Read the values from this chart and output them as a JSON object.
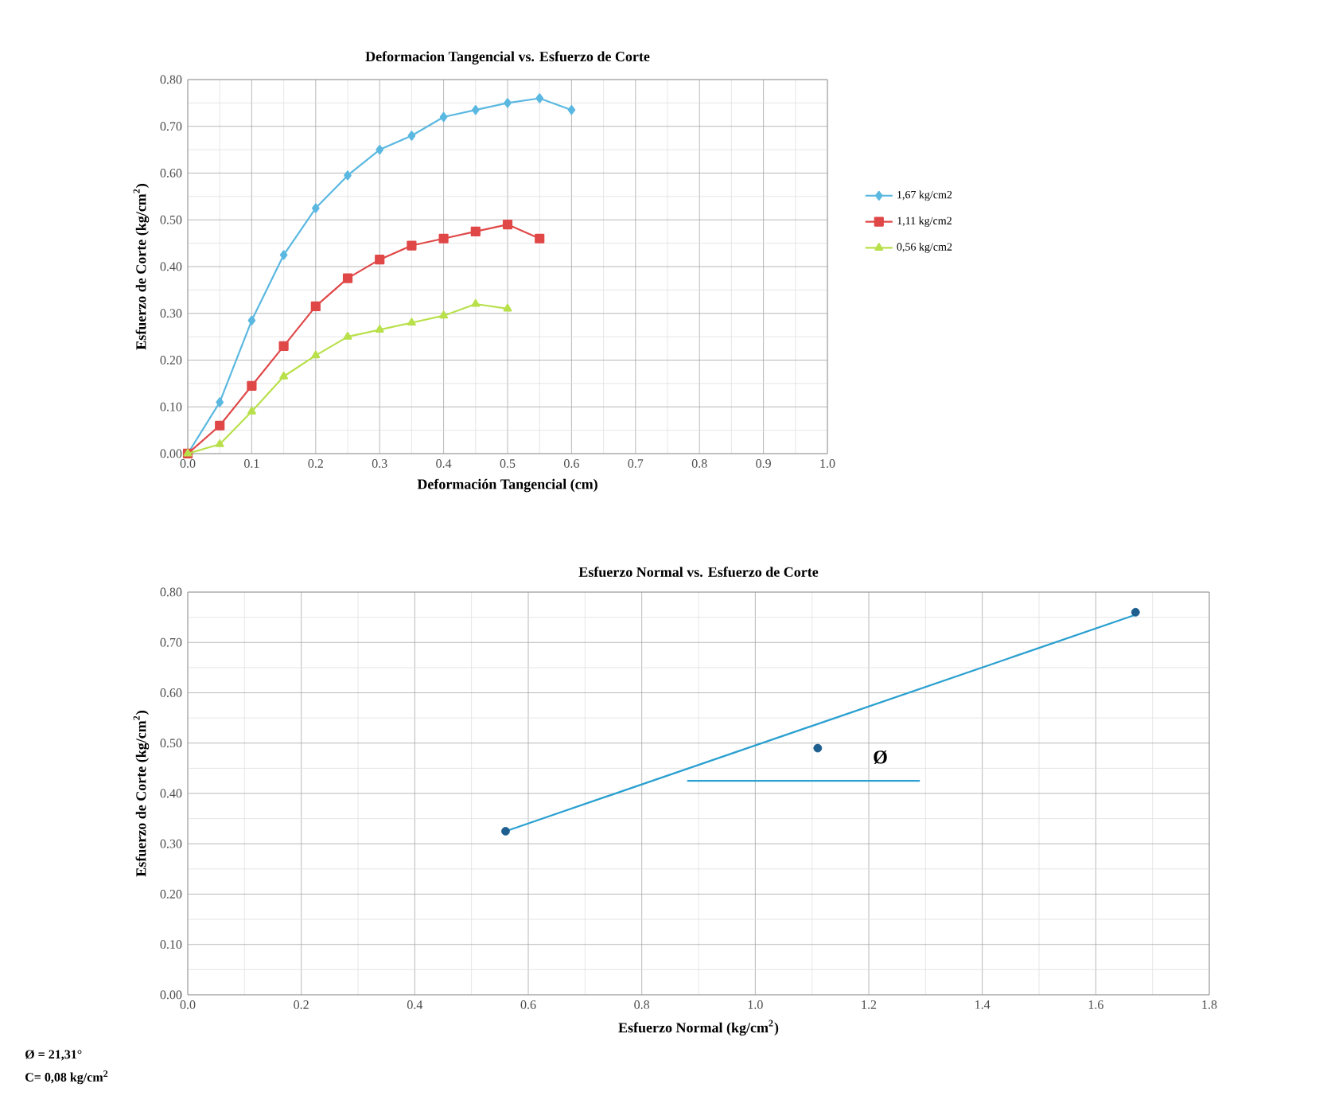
{
  "chart_data": [
    {
      "type": "line",
      "title": "Deformacion Tangencial vs. Esfuerzo de Corte",
      "xlabel": "Deformación Tangencial (cm)",
      "ylabel": "Esfuerzo de Corte (kg/cm$^{2}$)",
      "xlim": [
        0,
        1.0
      ],
      "ylim": [
        0,
        0.8
      ],
      "xticks": [
        {
          "value": 0,
          "label": "0.0"
        },
        {
          "value": 0.1,
          "label": "0.1"
        },
        {
          "value": 0.2,
          "label": "0.2"
        },
        {
          "value": 0.3,
          "label": "0.3"
        },
        {
          "value": 0.4,
          "label": "0.4"
        },
        {
          "value": 0.5,
          "label": "0.5"
        },
        {
          "value": 0.6,
          "label": "0.6"
        },
        {
          "value": 0.7,
          "label": "0.7"
        },
        {
          "value": 0.8,
          "label": "0.8"
        },
        {
          "value": 0.9,
          "label": "0.9"
        },
        {
          "value": 1.0,
          "label": "1.0"
        }
      ],
      "yticks": [
        {
          "value": 0,
          "label": "0.00"
        },
        {
          "value": 0.1,
          "label": "0.10"
        },
        {
          "value": 0.2,
          "label": "0.20"
        },
        {
          "value": 0.3,
          "label": "0.30"
        },
        {
          "value": 0.4,
          "label": "0.40"
        },
        {
          "value": 0.5,
          "label": "0.50"
        },
        {
          "value": 0.6,
          "label": "0.60"
        },
        {
          "value": 0.7,
          "label": "0.70"
        },
        {
          "value": 0.8,
          "label": "0.80"
        }
      ],
      "grid": true,
      "legend": "right",
      "series": [
        {
          "name": "1,67 kg/cm2",
          "color": "#5bb8e0",
          "marker": "diamond",
          "x": [
            0,
            0.05,
            0.1,
            0.15,
            0.2,
            0.25,
            0.3,
            0.35,
            0.4,
            0.45,
            0.5,
            0.55,
            0.6
          ],
          "values": [
            0,
            0.11,
            0.285,
            0.425,
            0.525,
            0.595,
            0.65,
            0.68,
            0.72,
            0.735,
            0.75,
            0.76,
            0.735
          ]
        },
        {
          "name": "1,11 kg/cm2",
          "color": "#e04848",
          "marker": "square",
          "x": [
            0,
            0.05,
            0.1,
            0.15,
            0.2,
            0.25,
            0.3,
            0.35,
            0.4,
            0.45,
            0.5,
            0.55
          ],
          "values": [
            0,
            0.06,
            0.145,
            0.23,
            0.315,
            0.375,
            0.415,
            0.445,
            0.46,
            0.475,
            0.49,
            0.46
          ]
        },
        {
          "name": "0,56 kg/cm2",
          "color": "#b8e04a",
          "marker": "triangle",
          "x": [
            0,
            0.05,
            0.1,
            0.15,
            0.2,
            0.25,
            0.3,
            0.35,
            0.4,
            0.45,
            0.5
          ],
          "values": [
            0,
            0.02,
            0.09,
            0.165,
            0.21,
            0.25,
            0.265,
            0.28,
            0.295,
            0.32,
            0.31
          ]
        }
      ]
    },
    {
      "type": "scatter",
      "title": "Esfuerzo Normal vs. Esfuerzo de Corte",
      "xlabel": "Esfuerzo Normal (kg/cm$^{2}$)",
      "ylabel": "Esfuerzo de Corte (kg/cm$^{2}$)",
      "xlim": [
        0,
        1.8
      ],
      "ylim": [
        0,
        0.8
      ],
      "xticks": [
        {
          "value": 0,
          "label": "0.0"
        },
        {
          "value": 0.2,
          "label": "0.2"
        },
        {
          "value": 0.4,
          "label": "0.4"
        },
        {
          "value": 0.6,
          "label": "0.6"
        },
        {
          "value": 0.8,
          "label": "0.8"
        },
        {
          "value": 1.0,
          "label": "1.0"
        },
        {
          "value": 1.2,
          "label": "1.2"
        },
        {
          "value": 1.4,
          "label": "1.4"
        },
        {
          "value": 1.6,
          "label": "1.6"
        },
        {
          "value": 1.8,
          "label": "1.8"
        }
      ],
      "yticks": [
        {
          "value": 0,
          "label": "0.00"
        },
        {
          "value": 0.1,
          "label": "0.10"
        },
        {
          "value": 0.2,
          "label": "0.20"
        },
        {
          "value": 0.3,
          "label": "0.30"
        },
        {
          "value": 0.4,
          "label": "0.40"
        },
        {
          "value": 0.5,
          "label": "0.50"
        },
        {
          "value": 0.6,
          "label": "0.60"
        },
        {
          "value": 0.7,
          "label": "0.70"
        },
        {
          "value": 0.8,
          "label": "0.80"
        }
      ],
      "grid": true,
      "series": [
        {
          "type": "line",
          "color": "#2aa0d0",
          "marker": "none",
          "x": [
            0.56,
            1.67
          ],
          "values": [
            0.325,
            0.755
          ]
        },
        {
          "type": "line",
          "color": "#2aa0d0",
          "marker": "none",
          "x": [
            0.88,
            1.29
          ],
          "values": [
            0.425,
            0.425
          ]
        },
        {
          "color": "#1f5f8f",
          "marker": "circle",
          "x": [
            0.56,
            1.11,
            1.67
          ],
          "values": [
            0.325,
            0.49,
            0.76
          ]
        }
      ],
      "annotations": [
        "Ø",
        "Ø = 21,31°",
        "C= 0,08 kg/cm$^{2}$"
      ]
    }
  ]
}
